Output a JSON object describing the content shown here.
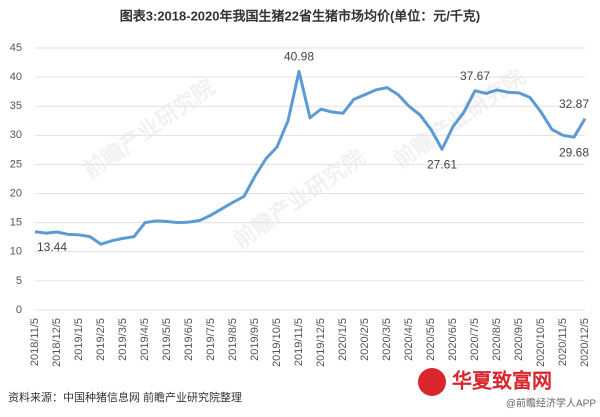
{
  "chart_data": {
    "type": "line",
    "title": "图表3:2018-2020年我国生猪22省生猪市场均价(单位：元/千克)",
    "categories": [
      "2018/11/5",
      null,
      "2018/12/5",
      null,
      "2019/1/5",
      null,
      "2019/2/5",
      null,
      "2019/3/5",
      null,
      "2019/4/5",
      null,
      "2019/5/5",
      null,
      "2019/6/5",
      null,
      "2019/7/5",
      null,
      "2019/8/5",
      null,
      "2019/9/5",
      null,
      "2019/10/5",
      null,
      "2019/11/5",
      null,
      "2019/12/5",
      null,
      "2020/1/5",
      null,
      "2020/2/5",
      null,
      "2020/3/5",
      null,
      "2020/4/5",
      null,
      "2020/5/5",
      null,
      "2020/6/5",
      null,
      "2020/7/5",
      null,
      "2020/8/5",
      null,
      "2020/9/5",
      null,
      "2020/10/5",
      null,
      "2020/11/5",
      null,
      "2020/12/5"
    ],
    "series": [
      {
        "name": "生猪市场均价",
        "color": "#5b9bd5",
        "values": [
          13.44,
          13.2,
          13.4,
          13.0,
          12.9,
          12.6,
          11.3,
          11.9,
          12.3,
          12.6,
          15.0,
          15.3,
          15.2,
          15.0,
          15.1,
          15.4,
          16.3,
          17.4,
          18.5,
          19.5,
          23.0,
          26.0,
          28.0,
          32.5,
          40.98,
          33.0,
          34.5,
          34.0,
          33.8,
          36.2,
          37.0,
          37.8,
          38.2,
          37.0,
          35.0,
          33.5,
          31.0,
          27.61,
          31.5,
          34.0,
          37.67,
          37.2,
          37.8,
          37.4,
          37.3,
          36.5,
          34.0,
          31.0,
          30.0,
          29.68,
          32.87
        ],
        "value_labels": [
          "13.44",
          null,
          null,
          null,
          null,
          null,
          null,
          null,
          null,
          null,
          null,
          null,
          null,
          null,
          null,
          null,
          null,
          null,
          null,
          null,
          null,
          null,
          null,
          null,
          "40.98",
          null,
          null,
          null,
          null,
          null,
          null,
          null,
          null,
          null,
          null,
          null,
          null,
          "27.61",
          null,
          null,
          "37.67",
          null,
          null,
          null,
          null,
          null,
          null,
          null,
          null,
          "29.68",
          "32.87"
        ]
      }
    ],
    "ylim": [
      0,
      45
    ],
    "yticks": [
      0,
      5,
      10,
      15,
      20,
      25,
      30,
      35,
      40,
      45
    ],
    "grid": true,
    "source": "资料来源：中国种猪信息网 前瞻产业研究院整理",
    "watermark": "@前瞻经济学人APP",
    "logo": "华夏致富网",
    "background_watermark": "前瞻产业研究院"
  }
}
